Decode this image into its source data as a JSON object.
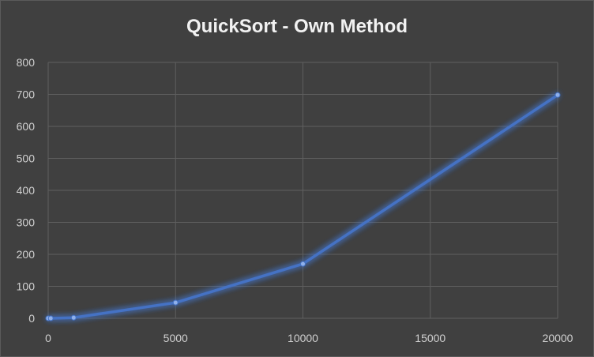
{
  "chart_data": {
    "type": "line",
    "title": "QuickSort - Own Method",
    "xlabel": "",
    "ylabel": "",
    "xlim": [
      0,
      20000
    ],
    "ylim": [
      0,
      800
    ],
    "x_ticks": [
      0,
      5000,
      10000,
      15000,
      20000
    ],
    "y_ticks": [
      0,
      100,
      200,
      300,
      400,
      500,
      600,
      700,
      800
    ],
    "grid": true,
    "legend": "none",
    "series": [
      {
        "x": [
          0,
          100,
          1000,
          5000,
          10000,
          20000
        ],
        "y": [
          0,
          0,
          2,
          49,
          170,
          698
        ],
        "color": "#4472c4"
      }
    ],
    "colors": {
      "background": "#404040",
      "grid": "#5f5f5f",
      "line": "#4472c4",
      "marker": "#8fb0ea",
      "text": "#d0d0d0"
    }
  }
}
